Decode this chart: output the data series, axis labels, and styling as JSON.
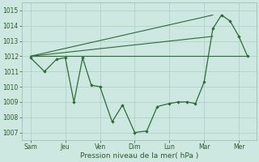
{
  "xlabel": "Pression niveau de la mer( hPa )",
  "background_color": "#cce8e0",
  "grid_color": "#aaccc4",
  "line_color": "#2d6b35",
  "ylim": [
    1006.5,
    1015.5
  ],
  "yticks": [
    1007,
    1008,
    1009,
    1010,
    1011,
    1012,
    1013,
    1014,
    1015
  ],
  "x_labels": [
    "Sam",
    "Jeu",
    "Ven",
    "Dim",
    "Lun",
    "Mar",
    "Mer"
  ],
  "x_positions": [
    0,
    2,
    4,
    6,
    8,
    10,
    12
  ],
  "xlim": [
    -0.5,
    13.0
  ],
  "flat_line": {
    "x": [
      0,
      12.5
    ],
    "y": [
      1012,
      1012
    ]
  },
  "rise_line1": {
    "x": [
      0,
      10.5
    ],
    "y": [
      1012,
      1013.3
    ]
  },
  "rise_line2": {
    "x": [
      0,
      10.5
    ],
    "y": [
      1012,
      1014.7
    ]
  },
  "main_x": [
    0,
    0.8,
    1.5,
    2.0,
    2.5,
    3.0,
    3.5,
    4.0,
    4.7,
    5.3,
    6.0,
    6.7,
    7.3,
    8.0,
    8.5,
    9.0,
    9.5,
    10.0,
    10.5,
    11.0,
    11.5,
    12.0,
    12.5
  ],
  "main_y": [
    1011.9,
    1011.0,
    1011.8,
    1011.9,
    1009.0,
    1011.9,
    1010.1,
    1010.0,
    1007.7,
    1008.8,
    1007.0,
    1007.1,
    1008.7,
    1008.9,
    1009.0,
    1009.0,
    1008.9,
    1010.3,
    1013.8,
    1014.7,
    1014.3,
    1013.3,
    1012.0
  ]
}
